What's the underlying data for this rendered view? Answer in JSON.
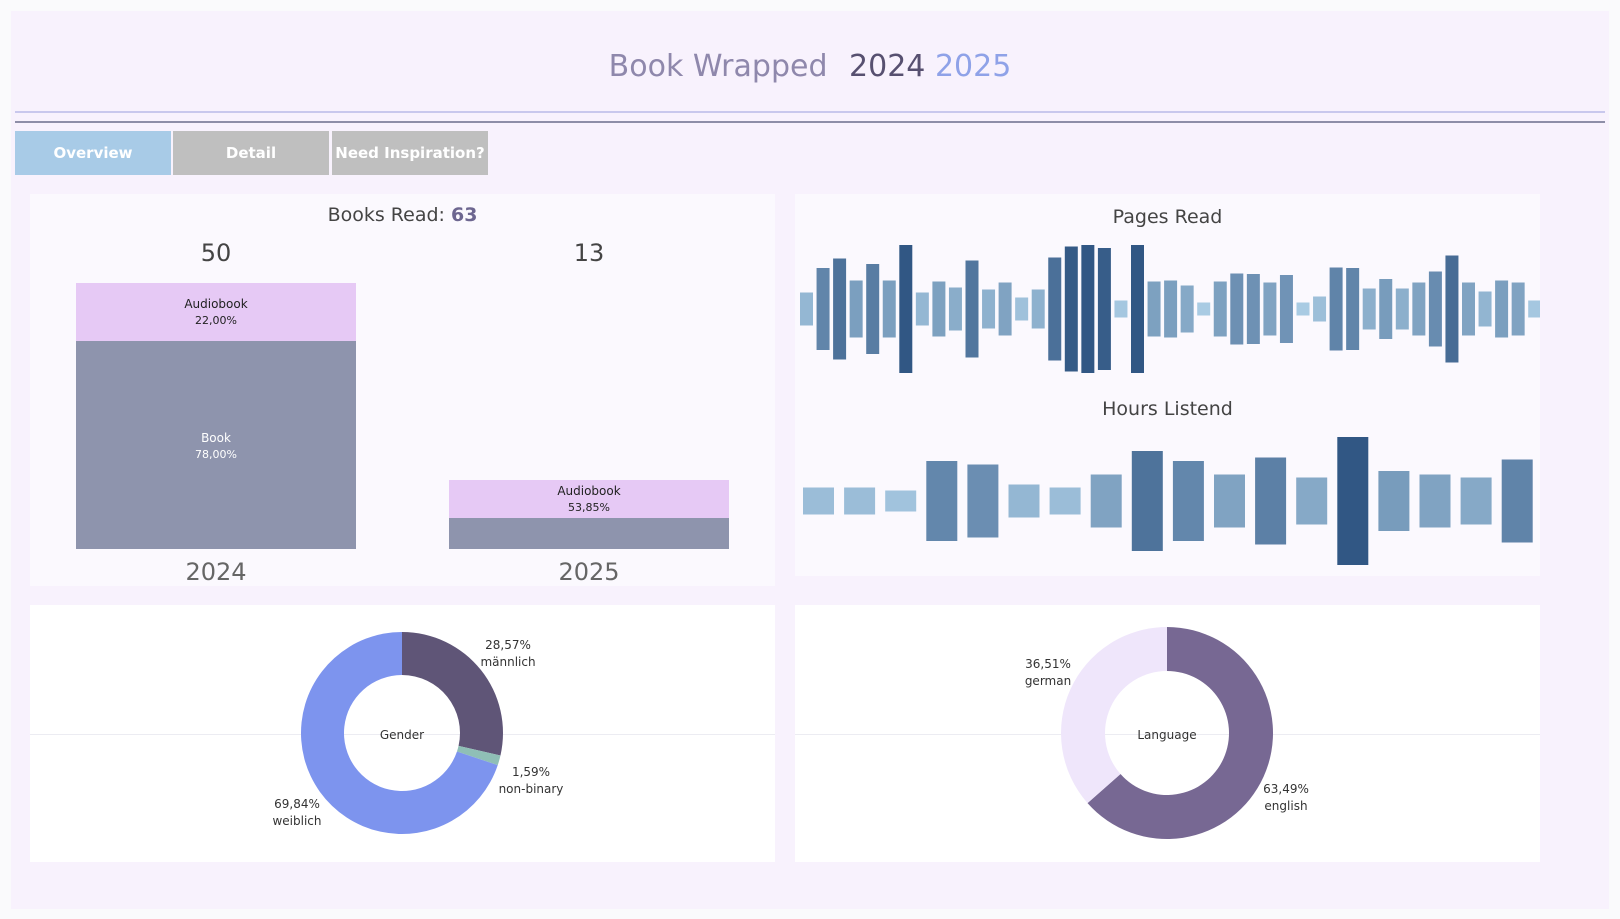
{
  "header": {
    "title": "Book Wrapped",
    "year_a": "2024",
    "year_b": "2025",
    "colors": {
      "title": "#8f88ac",
      "year_a": "#575070",
      "year_b": "#8fa2e8"
    }
  },
  "tabs": [
    {
      "label": "Overview",
      "active": true
    },
    {
      "label": "Detail",
      "active": false
    },
    {
      "label": "Need Inspiration?",
      "active": false
    }
  ],
  "chart_data": [
    {
      "type": "bar",
      "id": "books-read",
      "title": "Books Read:",
      "title_value": "63",
      "categories": [
        "2024",
        "2025"
      ],
      "totals": [
        50,
        13
      ],
      "series": [
        {
          "name": "Audiobook",
          "percent": [
            22.0,
            53.85
          ],
          "labels": [
            "22,00%",
            "53,85%"
          ],
          "color": "#e6c9f5"
        },
        {
          "name": "Book",
          "percent": [
            78.0,
            46.15
          ],
          "labels": [
            "78,00%",
            ""
          ],
          "color": "#8e94ad"
        }
      ]
    },
    {
      "type": "bar",
      "id": "pages-read",
      "title": "Pages Read",
      "note": "mirrored bars centered on a baseline; relative magnitudes (0-128 scale)",
      "values": [
        33,
        82,
        101,
        57,
        90,
        57,
        128,
        33,
        55,
        43,
        97,
        39,
        53,
        23,
        39,
        103,
        125,
        128,
        122,
        17,
        128,
        55,
        57,
        47,
        13,
        55,
        71,
        70,
        53,
        68,
        13,
        25,
        83,
        82,
        41,
        60,
        41,
        53,
        75,
        107,
        53,
        35,
        57,
        53,
        17
      ]
    },
    {
      "type": "bar",
      "id": "hours-listend",
      "title": "Hours Listend",
      "note": "mirrored bars centered on a baseline; relative magnitudes (0-128 scale)",
      "values": [
        27,
        27,
        21,
        80,
        73,
        33,
        27,
        53,
        100,
        80,
        53,
        87,
        47,
        128,
        60,
        53,
        47,
        83
      ]
    },
    {
      "type": "pie",
      "id": "gender",
      "center_label": "Gender",
      "slices": [
        {
          "name": "männlich",
          "value": 28.57,
          "label": "28,57%",
          "color": "#5f5577"
        },
        {
          "name": "non-binary",
          "value": 1.59,
          "label": "1,59%",
          "color": "#8fbfb6"
        },
        {
          "name": "weiblich",
          "value": 69.84,
          "label": "69,84%",
          "color": "#7d94ee"
        }
      ]
    },
    {
      "type": "pie",
      "id": "language",
      "center_label": "Language",
      "slices": [
        {
          "name": "english",
          "value": 63.49,
          "label": "63,49%",
          "color": "#776893"
        },
        {
          "name": "german",
          "value": 36.51,
          "label": "36,51%",
          "color": "#efe6fb"
        }
      ]
    }
  ]
}
